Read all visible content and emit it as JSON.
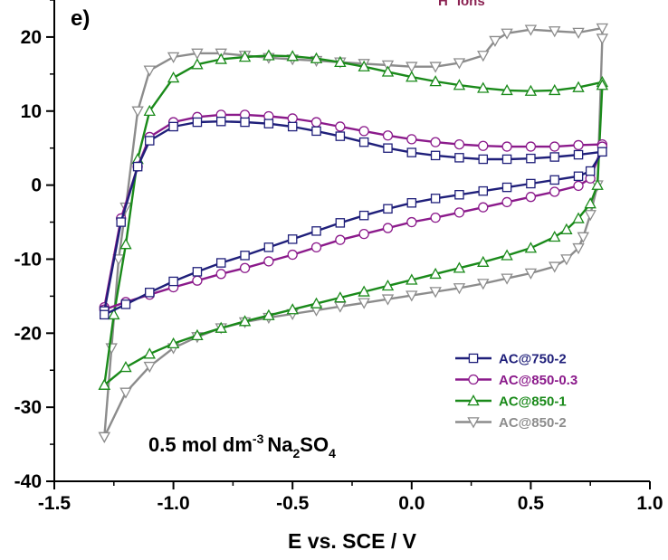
{
  "chart_data": {
    "type": "line",
    "panel_label": "e)",
    "xlabel": "E vs. SCE / V",
    "ylabel": "",
    "xlim": [
      -1.5,
      1.0
    ],
    "ylim": [
      -40,
      25
    ],
    "xticks": [
      "-1.5",
      "-1.0",
      "-0.5",
      "0.0",
      "0.5",
      "1.0"
    ],
    "xtick_values": [
      -1.5,
      -1.0,
      -0.5,
      0.0,
      0.5,
      1.0
    ],
    "yticks": [
      "-40",
      "-30",
      "-20",
      "-10",
      "0",
      "10",
      "20"
    ],
    "ytick_values": [
      -40,
      -30,
      -20,
      -10,
      0,
      10,
      20
    ],
    "grid": false,
    "legend_position": "bottom-right",
    "annotations": {
      "electrolyte": "0.5 mol dm",
      "electrolyte_exp": "-3",
      "electrolyte_salt": "Na",
      "electrolyte_sub1": "2",
      "electrolyte_salt2": "SO",
      "electrolyte_sub2": "4",
      "ion_label": "H",
      "ion_sup": "+",
      "ion_rest": " ions"
    },
    "series": [
      {
        "name": "AC@750-2",
        "color": "#1f1f7a",
        "marker": "square",
        "x": [
          -1.29,
          -1.22,
          -1.15,
          -1.1,
          -1.0,
          -0.9,
          -0.8,
          -0.7,
          -0.6,
          -0.5,
          -0.4,
          -0.3,
          -0.2,
          -0.1,
          0.0,
          0.1,
          0.2,
          0.3,
          0.4,
          0.5,
          0.6,
          0.7,
          0.8,
          0.8,
          0.75,
          0.7,
          0.6,
          0.5,
          0.4,
          0.3,
          0.2,
          0.1,
          0.0,
          -0.1,
          -0.2,
          -0.3,
          -0.4,
          -0.5,
          -0.6,
          -0.7,
          -0.8,
          -0.9,
          -1.0,
          -1.1,
          -1.2,
          -1.29
        ],
        "y": [
          -17.0,
          -5.0,
          2.5,
          6.0,
          7.9,
          8.5,
          8.6,
          8.5,
          8.3,
          7.9,
          7.3,
          6.6,
          5.8,
          5.0,
          4.4,
          4.0,
          3.7,
          3.5,
          3.5,
          3.6,
          3.8,
          4.1,
          4.5,
          4.5,
          1.9,
          1.2,
          0.7,
          0.2,
          -0.3,
          -0.8,
          -1.3,
          -1.8,
          -2.4,
          -3.2,
          -4.1,
          -5.1,
          -6.2,
          -7.3,
          -8.4,
          -9.5,
          -10.5,
          -11.7,
          -13.0,
          -14.5,
          -16.1,
          -17.5
        ]
      },
      {
        "name": "AC@850-0.3",
        "color": "#8b1a8b",
        "marker": "circle",
        "x": [
          -1.29,
          -1.22,
          -1.15,
          -1.1,
          -1.0,
          -0.9,
          -0.8,
          -0.7,
          -0.6,
          -0.5,
          -0.4,
          -0.3,
          -0.2,
          -0.1,
          0.0,
          0.1,
          0.2,
          0.3,
          0.4,
          0.5,
          0.6,
          0.7,
          0.8,
          0.8,
          0.75,
          0.7,
          0.6,
          0.5,
          0.4,
          0.3,
          0.2,
          0.1,
          0.0,
          -0.1,
          -0.2,
          -0.3,
          -0.4,
          -0.5,
          -0.6,
          -0.7,
          -0.8,
          -0.9,
          -1.0,
          -1.1,
          -1.2,
          -1.29
        ],
        "y": [
          -16.5,
          -4.5,
          2.5,
          6.5,
          8.5,
          9.2,
          9.5,
          9.5,
          9.3,
          9.0,
          8.5,
          7.9,
          7.3,
          6.7,
          6.2,
          5.8,
          5.5,
          5.3,
          5.2,
          5.2,
          5.2,
          5.4,
          5.5,
          5.2,
          0.9,
          -0.1,
          -0.9,
          -1.6,
          -2.3,
          -3.0,
          -3.7,
          -4.4,
          -5.0,
          -5.8,
          -6.6,
          -7.4,
          -8.4,
          -9.4,
          -10.3,
          -11.2,
          -12.0,
          -12.9,
          -13.8,
          -14.8,
          -15.8,
          -16.8
        ]
      },
      {
        "name": "AC@850-1",
        "color": "#1a8a1a",
        "marker": "triangle-up",
        "x": [
          -1.29,
          -1.25,
          -1.2,
          -1.15,
          -1.1,
          -1.0,
          -0.9,
          -0.8,
          -0.7,
          -0.6,
          -0.5,
          -0.4,
          -0.3,
          -0.2,
          -0.1,
          0.0,
          0.1,
          0.2,
          0.3,
          0.4,
          0.5,
          0.6,
          0.7,
          0.8,
          0.8,
          0.78,
          0.75,
          0.7,
          0.65,
          0.6,
          0.5,
          0.4,
          0.3,
          0.2,
          0.1,
          0.0,
          -0.1,
          -0.2,
          -0.3,
          -0.4,
          -0.5,
          -0.6,
          -0.7,
          -0.8,
          -0.9,
          -1.0,
          -1.1,
          -1.2,
          -1.29
        ],
        "y": [
          -27.0,
          -17.5,
          -8.0,
          3.5,
          10.0,
          14.5,
          16.3,
          17.0,
          17.3,
          17.5,
          17.4,
          17.1,
          16.6,
          16.0,
          15.3,
          14.6,
          14.0,
          13.5,
          13.1,
          12.8,
          12.7,
          12.8,
          13.2,
          13.9,
          13.5,
          0.0,
          -2.5,
          -4.5,
          -6.0,
          -7.0,
          -8.5,
          -9.5,
          -10.4,
          -11.2,
          -12.0,
          -12.8,
          -13.6,
          -14.4,
          -15.2,
          -16.0,
          -16.8,
          -17.6,
          -18.4,
          -19.3,
          -20.3,
          -21.4,
          -22.8,
          -24.6,
          -27.0
        ]
      },
      {
        "name": "AC@850-2",
        "color": "#8c8c8c",
        "marker": "triangle-down",
        "x": [
          -1.29,
          -1.26,
          -1.23,
          -1.2,
          -1.15,
          -1.1,
          -1.0,
          -0.9,
          -0.8,
          -0.7,
          -0.6,
          -0.5,
          -0.4,
          -0.3,
          -0.2,
          -0.1,
          0.0,
          0.1,
          0.2,
          0.3,
          0.35,
          0.4,
          0.5,
          0.6,
          0.7,
          0.8,
          0.8,
          0.78,
          0.75,
          0.72,
          0.7,
          0.65,
          0.6,
          0.5,
          0.4,
          0.3,
          0.2,
          0.1,
          0.0,
          -0.1,
          -0.2,
          -0.3,
          -0.4,
          -0.5,
          -0.6,
          -0.7,
          -0.8,
          -0.9,
          -1.0,
          -1.1,
          -1.2,
          -1.29
        ],
        "y": [
          -34.0,
          -22.0,
          -10.0,
          -3.0,
          10.0,
          15.5,
          17.3,
          17.8,
          17.8,
          17.5,
          17.2,
          17.0,
          16.8,
          16.6,
          16.4,
          16.2,
          16.0,
          16.0,
          16.5,
          17.5,
          19.5,
          20.5,
          21.0,
          20.8,
          20.6,
          21.2,
          19.8,
          0.0,
          -4.0,
          -7.0,
          -8.5,
          -10.0,
          -11.0,
          -11.9,
          -12.6,
          -13.3,
          -13.9,
          -14.4,
          -14.9,
          -15.4,
          -15.9,
          -16.4,
          -16.9,
          -17.4,
          -17.9,
          -18.5,
          -19.3,
          -20.5,
          -22.0,
          -24.5,
          -28.0,
          -34.0
        ]
      }
    ]
  }
}
